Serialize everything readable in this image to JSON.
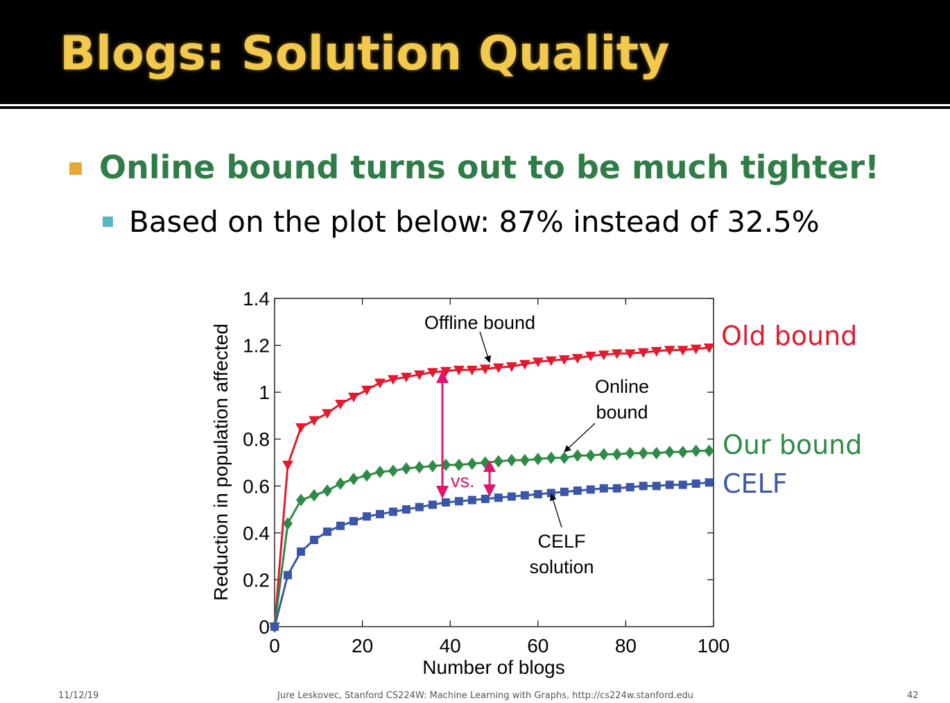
{
  "slide": {
    "title": "Blogs: Solution Quality",
    "bullet_main": "Online bound turns out to be much tighter!",
    "bullet_sub": "Based on the plot below: 87% instead of 32.5%",
    "footer_date": "11/12/19",
    "footer_text": "Jure Leskovec, Stanford CS224W: Machine Learning with Graphs, http://cs224w.stanford.edu",
    "page_number": "42"
  },
  "colors": {
    "title": "#f2c94c",
    "bullet_main": "#2e7d46",
    "old_bound": "#e31a2d",
    "our_bound": "#2e8b46",
    "celf": "#3a56a8",
    "arrow": "#e0156e"
  },
  "chart_data": {
    "type": "line",
    "xlabel": "Number of blogs",
    "ylabel": "Reduction in population affected",
    "xlim": [
      0,
      100
    ],
    "ylim": [
      0,
      1.4
    ],
    "xticks": [
      "0",
      "20",
      "40",
      "60",
      "80",
      "100"
    ],
    "yticks": [
      "0",
      "0.2",
      "0.4",
      "0.6",
      "0.8",
      "1",
      "1.2",
      "1.4"
    ],
    "x": [
      0,
      3,
      6,
      9,
      12,
      15,
      18,
      21,
      24,
      27,
      30,
      33,
      36,
      39,
      42,
      45,
      48,
      51,
      54,
      57,
      60,
      63,
      66,
      69,
      72,
      75,
      78,
      81,
      84,
      87,
      90,
      93,
      96,
      99
    ],
    "series": [
      {
        "name": "Old bound",
        "marker": "triangle-down",
        "values": [
          0,
          0.69,
          0.85,
          0.88,
          0.91,
          0.95,
          0.98,
          1.01,
          1.04,
          1.055,
          1.065,
          1.075,
          1.085,
          1.09,
          1.095,
          1.095,
          1.1,
          1.105,
          1.11,
          1.12,
          1.13,
          1.135,
          1.14,
          1.145,
          1.155,
          1.16,
          1.165,
          1.165,
          1.17,
          1.175,
          1.18,
          1.18,
          1.185,
          1.19
        ]
      },
      {
        "name": "Our bound",
        "marker": "diamond",
        "values": [
          0,
          0.44,
          0.54,
          0.56,
          0.58,
          0.61,
          0.63,
          0.645,
          0.66,
          0.665,
          0.675,
          0.68,
          0.685,
          0.69,
          0.69,
          0.695,
          0.7,
          0.705,
          0.71,
          0.71,
          0.715,
          0.72,
          0.72,
          0.73,
          0.73,
          0.735,
          0.735,
          0.74,
          0.74,
          0.74,
          0.745,
          0.745,
          0.75,
          0.75
        ]
      },
      {
        "name": "CELF",
        "marker": "square",
        "values": [
          0,
          0.22,
          0.32,
          0.37,
          0.405,
          0.43,
          0.45,
          0.47,
          0.48,
          0.49,
          0.5,
          0.51,
          0.52,
          0.53,
          0.535,
          0.54,
          0.545,
          0.55,
          0.555,
          0.56,
          0.565,
          0.57,
          0.575,
          0.58,
          0.585,
          0.59,
          0.59,
          0.595,
          0.6,
          0.6,
          0.605,
          0.605,
          0.61,
          0.615
        ]
      }
    ],
    "annotations": {
      "offline_bound": [
        "Offline bound"
      ],
      "online_bound": [
        "Online",
        "bound"
      ],
      "celf_solution": [
        "CELF",
        "solution"
      ],
      "vs": "vs."
    },
    "grid": false,
    "legend": "right, inline labels"
  }
}
